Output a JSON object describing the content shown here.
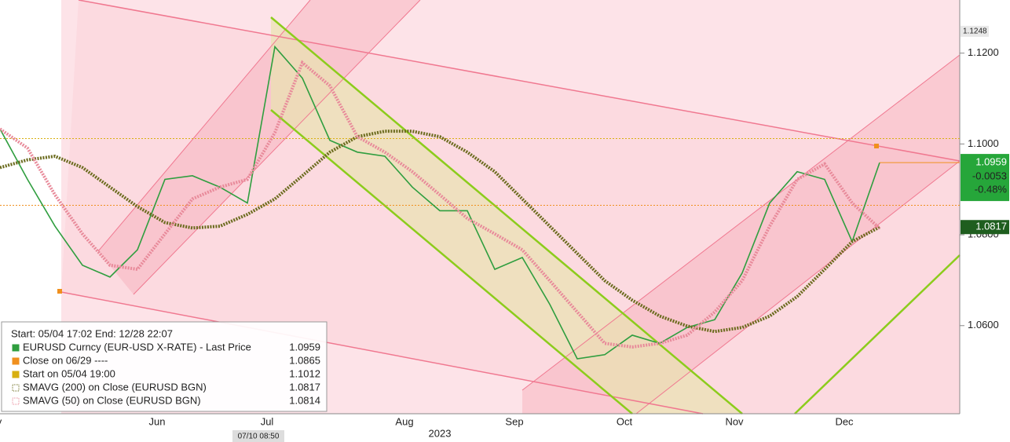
{
  "chart_data": {
    "type": "line",
    "header": "Start: 05/04 17:02 End: 12/28 22:07",
    "categories": [
      "May",
      null,
      null,
      null,
      null,
      null,
      "Jun",
      null,
      null,
      null,
      "Jul",
      null,
      null,
      null,
      null,
      "Aug",
      null,
      null,
      null,
      "Sep",
      null,
      null,
      null,
      "Oct",
      null,
      null,
      null,
      "Nov",
      null,
      null,
      null,
      "Dec",
      null
    ],
    "x_label_year": "2023",
    "cursor_label": "07/10 08:50",
    "series": [
      {
        "name": "EURUSD Curncy (EUR-USD X-RATE) - Last Price",
        "color": "#2f9e3f",
        "style": "solid",
        "values": [
          1.1033,
          1.0922,
          1.0819,
          1.0733,
          1.0707,
          1.0767,
          1.0922,
          1.093,
          1.0905,
          1.087,
          1.1214,
          1.1145,
          1.1008,
          1.0982,
          1.0973,
          1.0905,
          1.0853,
          1.0853,
          1.0724,
          1.075,
          1.0647,
          1.0527,
          1.0536,
          1.0579,
          1.0561,
          1.0596,
          1.0613,
          1.0716,
          1.087,
          1.0939,
          1.0922,
          1.0785,
          1.0959
        ]
      },
      {
        "name": "SMAVG (200)  on Close (EURUSD BGN)",
        "color": "#6b6b1e",
        "style": "dotted",
        "values": [
          1.0948,
          1.0965,
          1.0973,
          1.0948,
          1.0905,
          1.0862,
          1.0827,
          1.0815,
          1.0819,
          1.0845,
          1.0879,
          1.093,
          1.0982,
          1.1016,
          1.1028,
          1.1028,
          1.1016,
          1.0982,
          1.0939,
          1.0879,
          1.0819,
          1.0759,
          1.0699,
          1.0656,
          1.0621,
          1.0599,
          1.0587,
          1.0596,
          1.0621,
          1.0664,
          1.0724,
          1.0785,
          1.0817
        ]
      },
      {
        "name": "SMAVG (50)  on Close (EURUSD BGN)",
        "color": "#e88a9a",
        "style": "dotted",
        "values": [
          1.1033,
          1.0991,
          1.0888,
          1.0802,
          1.0733,
          1.0724,
          1.0802,
          1.0879,
          1.0905,
          1.0922,
          1.1025,
          1.1179,
          1.1128,
          1.1016,
          1.0982,
          1.0939,
          1.0888,
          1.0836,
          1.0802,
          1.0767,
          1.0699,
          1.063,
          1.0561,
          1.0553,
          1.0561,
          1.0579,
          1.063,
          1.0699,
          1.0819,
          1.0922,
          1.0956,
          1.087,
          1.0814
        ]
      }
    ],
    "hlines": [
      {
        "name": "Close on 06/29 ----",
        "value": 1.0865,
        "color": "#f0901e"
      },
      {
        "name": "Start on 05/04 19:00",
        "value": 1.1012,
        "color": "#d8b010"
      }
    ],
    "ylim": [
      1.0406,
      1.1317
    ],
    "yticks": [
      {
        "value": 1.06,
        "label": "1.0600"
      },
      {
        "value": 1.08,
        "label": "1.0800"
      },
      {
        "value": 1.1,
        "label": "1.1000"
      },
      {
        "value": 1.12,
        "label": "1.1200"
      }
    ],
    "high_label": 1.1248,
    "last_change": -0.0053,
    "last_change_pct": {
      "value": -0.48,
      "label": "-0.48%"
    }
  }
}
